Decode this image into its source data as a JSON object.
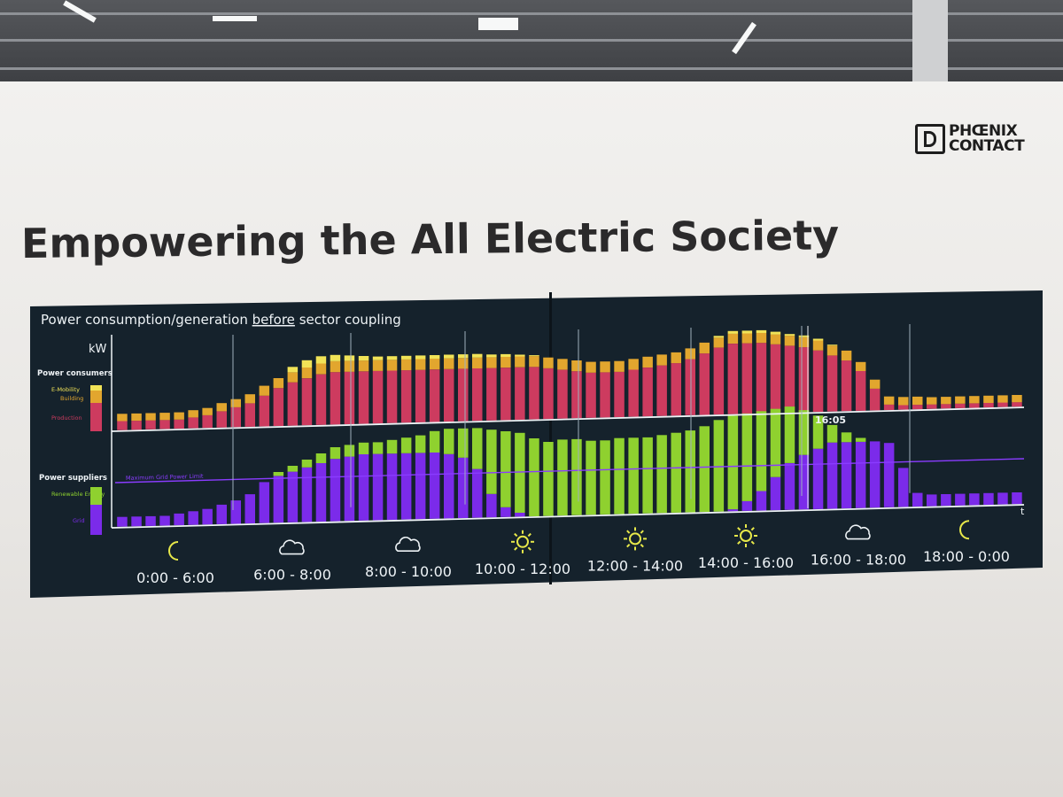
{
  "logo": {
    "line1": "PHŒNIX",
    "line2": "CONTACT"
  },
  "headline": "Empowering the All Electric Society",
  "screen": {
    "title_before": "Power consumption/generation ",
    "title_emph": "before",
    "title_after": " sector coupling",
    "unit_label": "kW",
    "time_axis_label": "t",
    "marker_time": "16:05",
    "grid_limit_label": "Maximum Grid Power Limit",
    "consumers": {
      "heading": "Power consumers",
      "legend": [
        "E-Mobility",
        "Building",
        "Production"
      ]
    },
    "suppliers": {
      "heading": "Power suppliers",
      "legend": [
        "Renewable Energy",
        "Grid"
      ]
    },
    "periods": [
      {
        "label": "0:00 - 6:00",
        "icon": "moon-icon"
      },
      {
        "label": "6:00 - 8:00",
        "icon": "cloud-icon"
      },
      {
        "label": "8:00 - 10:00",
        "icon": "cloud-icon"
      },
      {
        "label": "10:00 - 12:00",
        "icon": "sun-icon"
      },
      {
        "label": "12:00 - 14:00",
        "icon": "sun-icon"
      },
      {
        "label": "14:00 - 16:00",
        "icon": "sun-icon"
      },
      {
        "label": "16:00 - 18:00",
        "icon": "cloud-icon"
      },
      {
        "label": "18:00 - 0:00",
        "icon": "moon-icon"
      }
    ],
    "colors": {
      "emobility": "#f1e357",
      "building": "#e2a62e",
      "production": "#cd3b5f",
      "renewable": "#8fd12f",
      "grid": "#7b2bea",
      "limit": "#8a3cff",
      "icon": "#e7e84a",
      "text": "#eef3f6"
    }
  },
  "chart_data": {
    "type": "bar",
    "bars_per_series": 64,
    "series": [
      {
        "name": "Production",
        "values": [
          1,
          1,
          1,
          1,
          1,
          1.2,
          1.4,
          1.8,
          2.2,
          2.6,
          3.4,
          4.2,
          4.8,
          5.2,
          5.6,
          5.8,
          5.8,
          5.8,
          5.8,
          5.8,
          5.8,
          5.8,
          5.8,
          5.8,
          5.8,
          5.8,
          5.8,
          5.8,
          5.8,
          5.8,
          5.6,
          5.4,
          5.2,
          5,
          5,
          5,
          5.2,
          5.4,
          5.6,
          5.8,
          6.2,
          6.8,
          7.4,
          7.8,
          7.8,
          7.8,
          7.6,
          7.4,
          7.2,
          6.8,
          6.2,
          5.6,
          4.4,
          2.4,
          0.6,
          0.5,
          0.5,
          0.5,
          0.5,
          0.5,
          0.5,
          0.5,
          0.5,
          0.5
        ]
      },
      {
        "name": "Building",
        "values": [
          0.8,
          0.8,
          0.8,
          0.8,
          0.8,
          0.8,
          0.8,
          0.9,
          0.9,
          1,
          1.1,
          1.1,
          1.1,
          1.2,
          1.2,
          1.2,
          1.2,
          1.2,
          1.2,
          1.2,
          1.2,
          1.2,
          1.2,
          1.2,
          1.2,
          1.2,
          1.2,
          1.2,
          1.2,
          1.2,
          1.2,
          1.2,
          1.2,
          1.2,
          1.2,
          1.2,
          1.2,
          1.2,
          1.2,
          1.2,
          1.2,
          1.2,
          1.1,
          1.1,
          1.1,
          1.1,
          1.1,
          1.1,
          1.1,
          1.1,
          1.1,
          1.1,
          1,
          1,
          0.9,
          0.9,
          0.9,
          0.8,
          0.8,
          0.8,
          0.8,
          0.8,
          0.8,
          0.8
        ]
      },
      {
        "name": "E-Mobility",
        "values": [
          0,
          0,
          0,
          0,
          0,
          0,
          0,
          0,
          0,
          0,
          0,
          0,
          0.6,
          0.8,
          0.8,
          0.7,
          0.6,
          0.5,
          0.4,
          0.4,
          0.4,
          0.4,
          0.4,
          0.4,
          0.4,
          0.4,
          0.3,
          0.3,
          0.2,
          0.1,
          0,
          0,
          0,
          0,
          0,
          0,
          0,
          0,
          0,
          0,
          0,
          0,
          0.2,
          0.3,
          0.3,
          0.3,
          0.3,
          0.2,
          0.2,
          0.2,
          0.1,
          0,
          0,
          0,
          0,
          0,
          0,
          0,
          0,
          0,
          0,
          0,
          0,
          0
        ]
      },
      {
        "name": "Grid",
        "values": [
          1,
          1,
          1,
          1,
          1.2,
          1.4,
          1.6,
          2,
          2.4,
          3,
          4.2,
          4.8,
          5.2,
          5.6,
          6,
          6.4,
          6.6,
          6.8,
          6.8,
          6.8,
          6.8,
          6.8,
          6.8,
          6.6,
          6.2,
          5,
          2.4,
          1,
          0.4,
          0,
          0,
          0,
          0,
          0,
          0,
          0,
          0,
          0,
          0,
          0,
          0,
          0,
          0,
          0.2,
          1,
          2,
          3.4,
          4.8,
          5.6,
          6.2,
          6.8,
          6.8,
          6.8,
          6.8,
          6.6,
          4,
          1.4,
          1.2,
          1.2,
          1.2,
          1.2,
          1.2,
          1.2,
          1.2
        ]
      },
      {
        "name": "Renewable Energy",
        "values": [
          0,
          0,
          0,
          0,
          0,
          0,
          0,
          0,
          0,
          0,
          0,
          0.4,
          0.6,
          0.8,
          1,
          1.2,
          1.2,
          1.2,
          1.2,
          1.4,
          1.6,
          1.8,
          2.2,
          2.6,
          3,
          4.2,
          6.6,
          7.8,
          8.2,
          8,
          7.6,
          7.8,
          7.8,
          7.6,
          7.6,
          7.8,
          7.8,
          7.8,
          8,
          8.2,
          8.4,
          8.8,
          9.4,
          9.6,
          9,
          8.2,
          7,
          5.8,
          4.6,
          3.4,
          1.8,
          1,
          0.4,
          0,
          0,
          0,
          0,
          0,
          0,
          0,
          0,
          0,
          0,
          0
        ]
      }
    ],
    "ylim": [
      0,
      10
    ]
  }
}
